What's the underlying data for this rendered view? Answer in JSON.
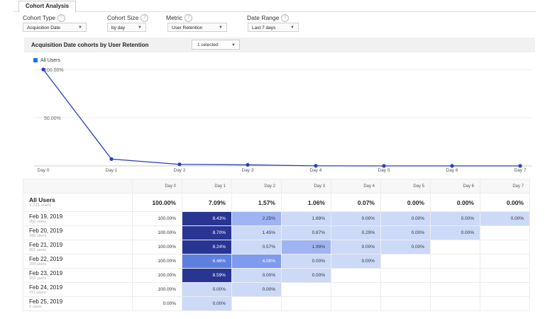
{
  "tab": "Cohort Analysis",
  "controls": [
    {
      "label": "Cohort Type",
      "value": "Acquisition Date"
    },
    {
      "label": "Cohort Size",
      "value": "by day"
    },
    {
      "label": "Metric",
      "value": "User Retention"
    },
    {
      "label": "Date Range",
      "value": "Last 7 days"
    }
  ],
  "help_glyph": "?",
  "panel": {
    "title": "Acquisition Date cohorts by User Retention",
    "selector": "1 selected"
  },
  "legend": "All Users",
  "colors": {
    "line": "#2b3fb4",
    "legend": "#1a73e8",
    "dark": "#283593",
    "light": "#ccdaf8"
  },
  "chart_data": {
    "type": "line",
    "categories": [
      "Day 0",
      "Day 1",
      "Day 2",
      "Day 3",
      "Day 4",
      "Day 5",
      "Day 6",
      "Day 7"
    ],
    "series": [
      {
        "name": "All Users",
        "values": [
          100,
          7.09,
          1.57,
          1.06,
          0.07,
          0.0,
          0.0,
          0.0
        ]
      }
    ],
    "ytick_labels": [
      "100.00%",
      "50.00%"
    ],
    "ylim": [
      0,
      100
    ]
  },
  "table": {
    "header": [
      "Day 0",
      "Day 1",
      "Day 2",
      "Day 3",
      "Day 4",
      "Day 5",
      "Day 6",
      "Day 7"
    ],
    "all_users": {
      "label": "All Users",
      "users": "1,721 users",
      "values": [
        "100.00%",
        "7.09%",
        "1.57%",
        "1.06%",
        "0.07%",
        "0.00%",
        "0.00%",
        "0.00%"
      ]
    },
    "rows": [
      {
        "date": "Feb 19, 2019",
        "users": "356 users",
        "values": [
          "100.00%",
          "8.43%",
          "2.25%",
          "1.69%",
          "0.00%",
          "0.00%",
          "0.00%",
          "0.00%"
        ]
      },
      {
        "date": "Feb 20, 2019",
        "users": "345 users",
        "values": [
          "100.00%",
          "8.70%",
          "1.45%",
          "0.87%",
          "0.29%",
          "0.00%",
          "0.00%"
        ]
      },
      {
        "date": "Feb 21, 2019",
        "users": "352 users",
        "values": [
          "100.00%",
          "8.24%",
          "0.57%",
          "1.99%",
          "0.00%",
          "0.00%"
        ]
      },
      {
        "date": "Feb 22, 2019",
        "users": "294 users",
        "values": [
          "100.00%",
          "6.46%",
          "4.08%",
          "0.00%",
          "0.00%"
        ]
      },
      {
        "date": "Feb 23, 2019",
        "users": "163 users",
        "values": [
          "100.00%",
          "8.59%",
          "0.00%",
          "0.00%"
        ]
      },
      {
        "date": "Feb 24, 2019",
        "users": "211 users",
        "values": [
          "100.00%",
          "0.00%",
          "0.00%"
        ]
      },
      {
        "date": "Feb 25, 2019",
        "users": "0 users",
        "values": [
          "0.00%",
          "0.00%"
        ]
      }
    ]
  }
}
